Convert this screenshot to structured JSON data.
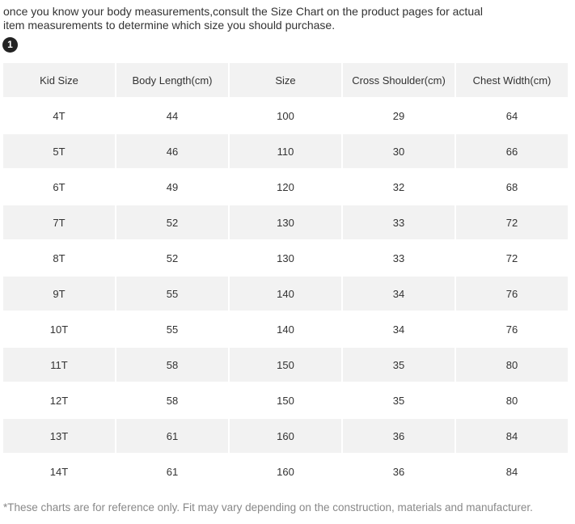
{
  "intro": "once you know your body measurements,consult the Size Chart on the product pages for actual item measurements to determine which size you should purchase.",
  "badge": "1",
  "table": {
    "header": [
      "Kid Size",
      "Body Length(cm)",
      "Size",
      "Cross Shoulder(cm)",
      "Chest Width(cm)"
    ],
    "rows": [
      [
        "4T",
        44,
        100,
        29,
        64
      ],
      [
        "5T",
        46,
        110,
        30,
        66
      ],
      [
        "6T",
        49,
        120,
        32,
        68
      ],
      [
        "7T",
        52,
        130,
        33,
        72
      ],
      [
        "8T",
        52,
        130,
        33,
        72
      ],
      [
        "9T",
        55,
        140,
        34,
        76
      ],
      [
        "10T",
        55,
        140,
        34,
        76
      ],
      [
        "11T",
        58,
        150,
        35,
        80
      ],
      [
        "12T",
        58,
        150,
        35,
        80
      ],
      [
        "13T",
        61,
        160,
        36,
        84
      ],
      [
        "14T",
        61,
        160,
        36,
        84
      ]
    ]
  },
  "footnote": "*These charts are for reference only. Fit may vary depending on the construction, materials and manufacturer."
}
